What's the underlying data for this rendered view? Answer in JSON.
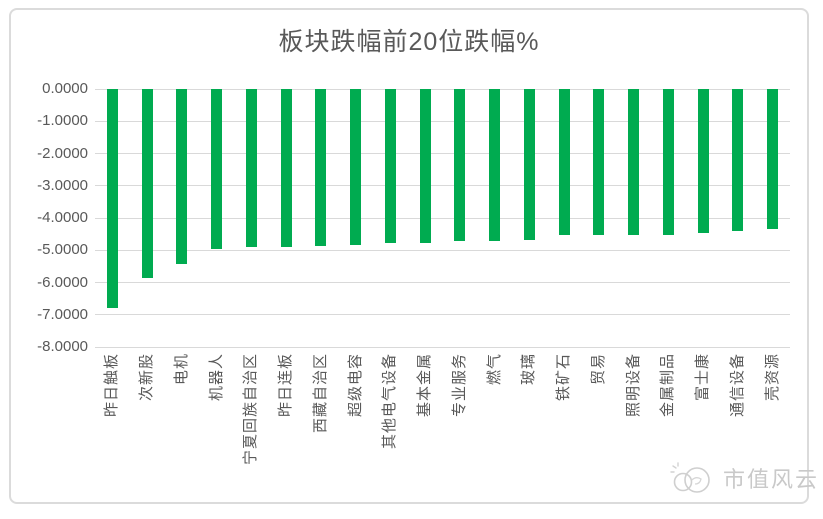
{
  "chart_data": {
    "type": "bar",
    "title": "板块跌幅前20位跌幅%",
    "categories": [
      "昨日触板",
      "次新股",
      "电机",
      "机器人",
      "宁夏回族自治区",
      "昨日连板",
      "西藏自治区",
      "超级电容",
      "其他电气设备",
      "基本金属",
      "专业服务",
      "燃气",
      "玻璃",
      "铁矿石",
      "贸易",
      "照明设备",
      "金属制品",
      "富士康",
      "通信设备",
      "壳资源"
    ],
    "values": [
      -6.8,
      -5.85,
      -5.43,
      -4.96,
      -4.9,
      -4.89,
      -4.87,
      -4.84,
      -4.79,
      -4.76,
      -4.72,
      -4.71,
      -4.69,
      -4.52,
      -4.53,
      -4.54,
      -4.52,
      -4.46,
      -4.4,
      -4.33
    ],
    "xlabel": "",
    "ylabel": "",
    "ylim": [
      -8,
      0
    ],
    "y_ticks": [
      "0.0000",
      "-1.0000",
      "-2.0000",
      "-3.0000",
      "-4.0000",
      "-5.0000",
      "-6.0000",
      "-7.0000",
      "-8.0000"
    ],
    "grid": true,
    "legend": false
  },
  "watermark": {
    "text": "市值风云"
  },
  "colors": {
    "bar": "#00AB50",
    "gridline": "#D9D9D9",
    "frame_border": "#DBDBDB",
    "axis_text": "#595959",
    "title_text": "#595959",
    "watermark": "#C9C9C9"
  }
}
